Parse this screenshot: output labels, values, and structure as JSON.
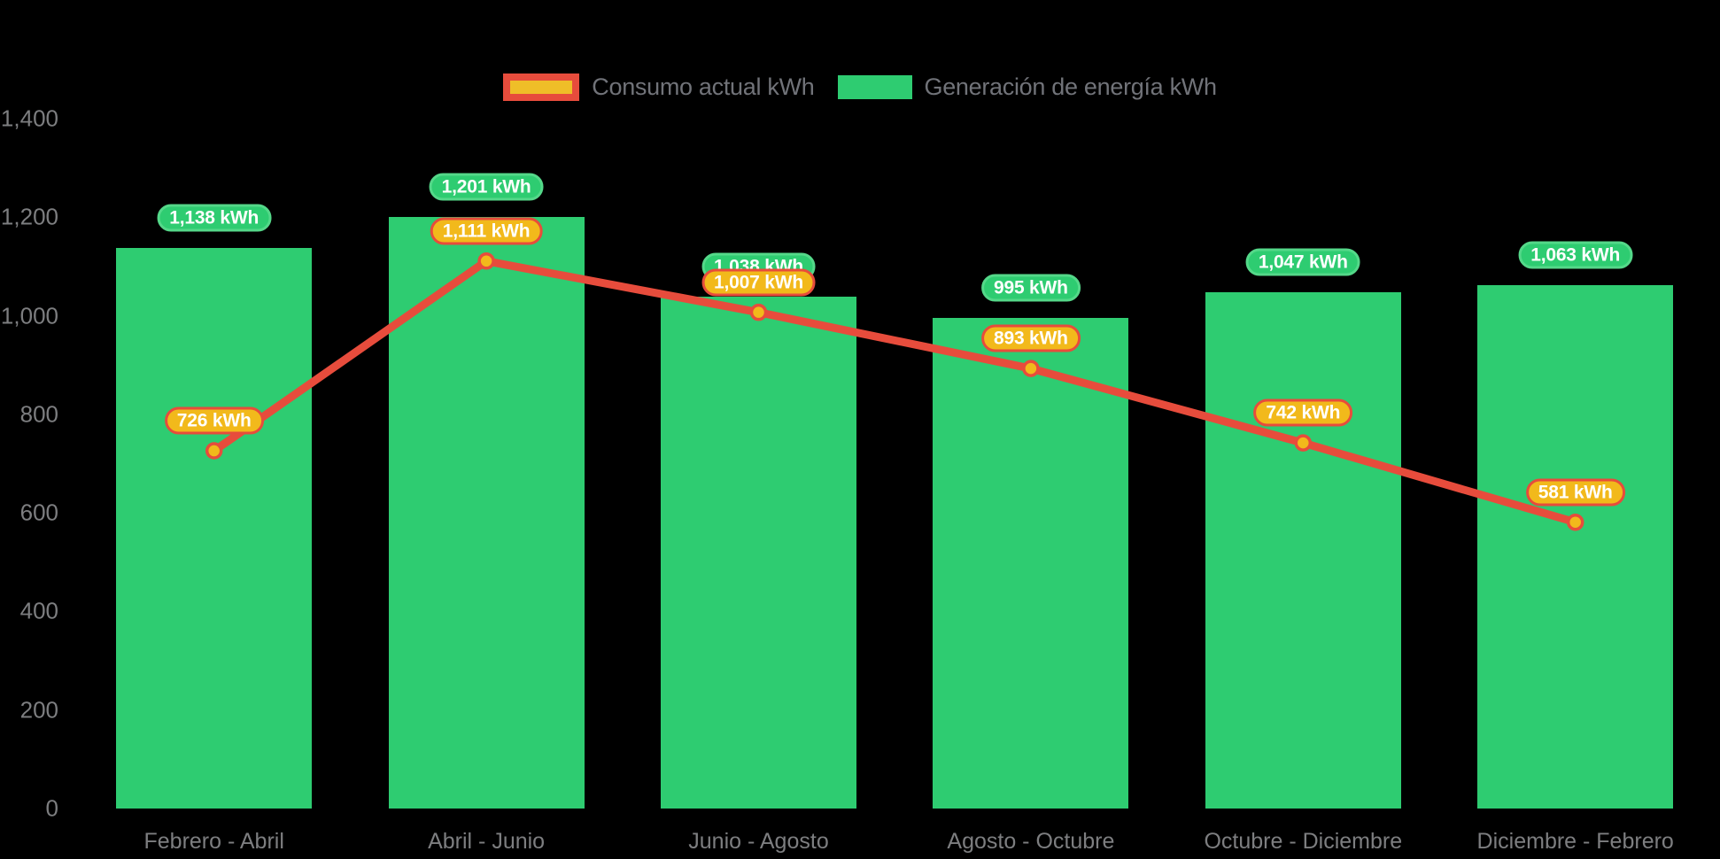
{
  "legend": {
    "items": [
      {
        "label": "Consumo actual kWh",
        "swatch_fill": "#EFBE28",
        "swatch_border": "#E74C3C"
      },
      {
        "label": "Generación de energía kWh",
        "swatch_fill": "#2ECC71",
        "swatch_border": null
      }
    ]
  },
  "chart_data": {
    "type": "bar",
    "subtype": "bar-with-line-overlay",
    "background": "#000000",
    "categories": [
      "Febrero - Abril",
      "Abril - Junio",
      "Junio - Agosto",
      "Agosto - Octubre",
      "Octubre - Diciembre",
      "Diciembre - Febrero"
    ],
    "series": [
      {
        "name": "Generación de energía kWh",
        "type": "bar",
        "color": "#2ECC71",
        "values": [
          1138,
          1201,
          1038,
          995,
          1047,
          1063
        ],
        "data_labels": [
          "1,138 kWh",
          "1,201 kWh",
          "1,038 kWh",
          "995 kWh",
          "1,047 kWh",
          "1,063 kWh"
        ]
      },
      {
        "name": "Consumo actual kWh",
        "type": "line",
        "color": "#E74C3C",
        "marker_fill": "#F2B91B",
        "marker_border": "#E74C3C",
        "values": [
          726,
          1111,
          1007,
          893,
          742,
          581
        ],
        "data_labels": [
          "726 kWh",
          "1,111 kWh",
          "1,007 kWh",
          "893 kWh",
          "742 kWh",
          "581 kWh"
        ]
      }
    ],
    "xlabel": "",
    "ylabel": "",
    "ylim": [
      0,
      1400
    ],
    "yticks": [
      0,
      200,
      400,
      600,
      800,
      1000,
      1200,
      1400
    ],
    "ytick_labels": [
      "0",
      "200",
      "400",
      "600",
      "800",
      "1,000",
      "1,200",
      "1,400"
    ],
    "grid": false,
    "legend_position": "top-center",
    "axis_text_color": "#7d7e80"
  }
}
